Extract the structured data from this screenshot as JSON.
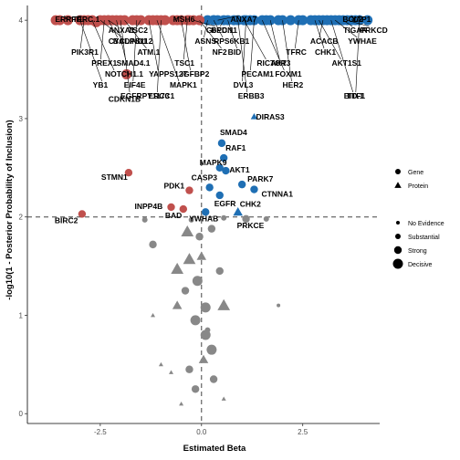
{
  "chart_data": {
    "type": "scatter",
    "title": "",
    "xlabel": "Estimated Beta",
    "ylabel": "-log10(1 - Posterior Probability of Inclusion)",
    "xlim": [
      -4.3,
      4.4
    ],
    "ylim": [
      -0.1,
      4.15
    ],
    "x_ticks": [
      -2.5,
      0.0,
      2.5
    ],
    "x_tick_labels": [
      "-2.5",
      "0.0",
      "2.5"
    ],
    "y_ticks": [
      0,
      1,
      2,
      3,
      4
    ],
    "y_tick_labels": [
      "0",
      "1",
      "2",
      "3",
      "4"
    ],
    "reference_lines": {
      "x": 0,
      "y": 2,
      "style": "dashed"
    },
    "legend": {
      "placement": "right",
      "shape_entries": [
        {
          "label": "Gene",
          "shape": "circle"
        },
        {
          "label": "Protein",
          "shape": "triangle"
        }
      ],
      "size_entries": [
        {
          "label": "No Evidence",
          "size": 1
        },
        {
          "label": "Substantial",
          "size": 2
        },
        {
          "label": "Strong",
          "size": 3
        },
        {
          "label": "Decisive",
          "size": 4
        }
      ]
    },
    "colors": {
      "negative": "#C0504D",
      "positive": "#1F6FB4",
      "insignificant": "#888888"
    },
    "labeled_points": [
      {
        "label": "SMAD4",
        "x": 0.5,
        "y": 2.75,
        "shape": "circle",
        "size": 3
      },
      {
        "label": "RAF1",
        "x": 0.55,
        "y": 2.6,
        "shape": "circle",
        "size": 3
      },
      {
        "label": "MAPK9",
        "x": 0.45,
        "y": 2.5,
        "shape": "circle",
        "size": 3
      },
      {
        "label": "AKT1",
        "x": 0.6,
        "y": 2.47,
        "shape": "circle",
        "size": 3
      },
      {
        "label": "CASP3",
        "x": 0.2,
        "y": 2.3,
        "shape": "circle",
        "size": 3
      },
      {
        "label": "PARK7",
        "x": 1.0,
        "y": 2.33,
        "shape": "circle",
        "size": 3
      },
      {
        "label": "EGFR",
        "x": 0.45,
        "y": 2.22,
        "shape": "circle",
        "size": 3
      },
      {
        "label": "CTNNA1",
        "x": 1.3,
        "y": 2.28,
        "shape": "circle",
        "size": 3
      },
      {
        "label": "CHK2",
        "x": 0.9,
        "y": 2.05,
        "shape": "triangle",
        "size": 3
      },
      {
        "label": "YWHAB",
        "x": 0.1,
        "y": 2.05,
        "shape": "circle",
        "size": 3
      },
      {
        "label": "PRKCE",
        "x": 1.1,
        "y": 1.98,
        "shape": "circle",
        "size": 3
      },
      {
        "label": "STMN1",
        "x": -1.8,
        "y": 2.45,
        "shape": "circle",
        "size": 3
      },
      {
        "label": "PDK1",
        "x": -0.3,
        "y": 2.27,
        "shape": "circle",
        "size": 3
      },
      {
        "label": "INPP4B",
        "x": -0.75,
        "y": 2.1,
        "shape": "circle",
        "size": 3
      },
      {
        "label": "BAD",
        "x": -0.45,
        "y": 2.08,
        "shape": "circle",
        "size": 3
      },
      {
        "label": "BIRC2",
        "x": -2.95,
        "y": 2.03,
        "shape": "circle",
        "size": 3
      },
      {
        "label": "DIRAS3",
        "x": 1.3,
        "y": 3.02,
        "shape": "triangle",
        "size": 2
      },
      {
        "label": "CDKN1B",
        "x": -1.85,
        "y": 3.45,
        "shape": "circle",
        "size": 4
      },
      {
        "label": "ERRFI1",
        "x": -3.3,
        "y": 4.0,
        "shape": "circle",
        "size": 4
      },
      {
        "label": "ANXA1",
        "x": -2.3,
        "y": 4.0,
        "shape": "circle",
        "size": 4
      },
      {
        "label": "BADPS112",
        "x": -2.5,
        "y": 4.0,
        "shape": "circle",
        "size": 4
      },
      {
        "label": "PIK3R1",
        "x": -2.9,
        "y": 4.0,
        "shape": "circle",
        "size": 4
      },
      {
        "label": "SMAD4.1",
        "x": -2.1,
        "y": 4.0,
        "shape": "circle",
        "size": 4
      },
      {
        "label": "NOTCH1.1",
        "x": -2.7,
        "y": 4.0,
        "shape": "circle",
        "size": 4
      },
      {
        "label": "EIF4E",
        "x": -1.6,
        "y": 4.0,
        "shape": "circle",
        "size": 4
      },
      {
        "label": "EGFRPY1173",
        "x": -2.0,
        "y": 4.0,
        "shape": "circle",
        "size": 4
      },
      {
        "label": "TFRC.1",
        "x": -3.5,
        "y": 4.0,
        "shape": "circle",
        "size": 4
      },
      {
        "label": "TSC2",
        "x": -1.5,
        "y": 4.0,
        "shape": "circle",
        "size": 4
      },
      {
        "label": "CYCLIND1",
        "x": -2.3,
        "y": 4.0,
        "shape": "circle",
        "size": 4
      },
      {
        "label": "ATM.1",
        "x": -1.9,
        "y": 4.0,
        "shape": "circle",
        "size": 4
      },
      {
        "label": "PREX1",
        "x": -2.4,
        "y": 4.0,
        "shape": "circle",
        "size": 4
      },
      {
        "label": "YAPPS127",
        "x": -1.3,
        "y": 4.0,
        "shape": "circle",
        "size": 4
      },
      {
        "label": "YB1",
        "x": -3.0,
        "y": 4.0,
        "shape": "circle",
        "size": 4
      },
      {
        "label": "ERCC1",
        "x": -1.0,
        "y": 4.0,
        "shape": "circle",
        "size": 4
      },
      {
        "label": "MSH6",
        "x": -0.7,
        "y": 4.0,
        "shape": "circle",
        "size": 4
      },
      {
        "label": "G6PD.1",
        "x": -0.2,
        "y": 4.0,
        "shape": "circle",
        "size": 4
      },
      {
        "label": "ASNS",
        "x": 0.15,
        "y": 4.0,
        "shape": "circle",
        "size": 4
      },
      {
        "label": "BID",
        "x": 0.65,
        "y": 4.0,
        "shape": "circle",
        "size": 4
      },
      {
        "label": "RICTOR",
        "x": 1.05,
        "y": 4.0,
        "shape": "circle",
        "size": 4
      },
      {
        "label": "PECAM1",
        "x": 1.3,
        "y": 4.0,
        "shape": "circle",
        "size": 4
      },
      {
        "label": "HER2",
        "x": 2.0,
        "y": 4.0,
        "shape": "circle",
        "size": 4
      },
      {
        "label": "BID.1",
        "x": 3.2,
        "y": 4.0,
        "shape": "circle",
        "size": 4
      },
      {
        "label": "BCL2",
        "x": 3.8,
        "y": 4.0,
        "shape": "circle",
        "size": 4
      },
      {
        "label": "TIGAR",
        "x": 3.5,
        "y": 4.0,
        "shape": "circle",
        "size": 4
      },
      {
        "label": "YWHAE",
        "x": 3.3,
        "y": 4.0,
        "shape": "circle",
        "size": 4
      },
      {
        "label": "TFRC",
        "x": 2.4,
        "y": 4.0,
        "shape": "circle",
        "size": 4
      },
      {
        "label": "AKT3",
        "x": 1.7,
        "y": 4.0,
        "shape": "circle",
        "size": 4
      },
      {
        "label": "FOXM1",
        "x": 1.5,
        "y": 4.0,
        "shape": "circle",
        "size": 4
      },
      {
        "label": "DVL3",
        "x": 1.1,
        "y": 4.0,
        "shape": "circle",
        "size": 4
      },
      {
        "label": "ERBB3",
        "x": 0.9,
        "y": 4.0,
        "shape": "circle",
        "size": 4
      },
      {
        "label": "ANXA7",
        "x": 0.4,
        "y": 4.0,
        "shape": "circle",
        "size": 4
      },
      {
        "label": "BECN1",
        "x": 0.55,
        "y": 4.0,
        "shape": "circle",
        "size": 4
      },
      {
        "label": "RPS6KB1",
        "x": 0.3,
        "y": 4.0,
        "shape": "circle",
        "size": 4
      },
      {
        "label": "NF2",
        "x": -0.05,
        "y": 4.0,
        "shape": "circle",
        "size": 4
      },
      {
        "label": "TSC1",
        "x": -0.35,
        "y": 4.0,
        "shape": "circle",
        "size": 4
      },
      {
        "label": "IGFBP2",
        "x": -0.5,
        "y": 4.0,
        "shape": "circle",
        "size": 4
      },
      {
        "label": "MAPK1",
        "x": -1.1,
        "y": 4.0,
        "shape": "circle",
        "size": 4
      },
      {
        "label": "TTF1",
        "x": 3.9,
        "y": 4.0,
        "shape": "circle",
        "size": 4
      },
      {
        "label": "YAP1",
        "x": 3.7,
        "y": 4.0,
        "shape": "circle",
        "size": 4
      },
      {
        "label": "PRKCD",
        "x": 3.6,
        "y": 4.0,
        "shape": "circle",
        "size": 4
      },
      {
        "label": "ACACB",
        "x": 3.0,
        "y": 4.0,
        "shape": "circle",
        "size": 4
      },
      {
        "label": "CHK1",
        "x": 2.8,
        "y": 4.0,
        "shape": "circle",
        "size": 4
      },
      {
        "label": "AKT1S1",
        "x": 2.9,
        "y": 4.0,
        "shape": "circle",
        "size": 4
      }
    ],
    "unlabeled_points": [
      {
        "x": -3.6,
        "y": 4.0,
        "shape": "circle",
        "size": 4,
        "group": "negative"
      },
      {
        "x": -2.8,
        "y": 4.0,
        "shape": "circle",
        "size": 4,
        "group": "negative"
      },
      {
        "x": -2.6,
        "y": 3.98,
        "shape": "circle",
        "size": 4,
        "group": "negative"
      },
      {
        "x": -2.2,
        "y": 4.0,
        "shape": "circle",
        "size": 4,
        "group": "negative"
      },
      {
        "x": -1.7,
        "y": 4.0,
        "shape": "circle",
        "size": 4,
        "group": "negative"
      },
      {
        "x": -1.2,
        "y": 4.0,
        "shape": "circle",
        "size": 4,
        "group": "negative"
      },
      {
        "x": -0.9,
        "y": 4.0,
        "shape": "circle",
        "size": 4,
        "group": "negative"
      },
      {
        "x": -0.6,
        "y": 4.0,
        "shape": "circle",
        "size": 4,
        "group": "negative"
      },
      {
        "x": -0.3,
        "y": 4.0,
        "shape": "circle",
        "size": 4,
        "group": "negative"
      },
      {
        "x": 0.3,
        "y": 4.0,
        "shape": "circle",
        "size": 4,
        "group": "positive"
      },
      {
        "x": 0.8,
        "y": 4.0,
        "shape": "circle",
        "size": 4,
        "group": "positive"
      },
      {
        "x": 1.2,
        "y": 4.0,
        "shape": "circle",
        "size": 4,
        "group": "positive"
      },
      {
        "x": 1.6,
        "y": 4.0,
        "shape": "circle",
        "size": 4,
        "group": "positive"
      },
      {
        "x": 1.9,
        "y": 4.0,
        "shape": "circle",
        "size": 4,
        "group": "positive"
      },
      {
        "x": 2.2,
        "y": 4.0,
        "shape": "circle",
        "size": 4,
        "group": "positive"
      },
      {
        "x": 2.5,
        "y": 4.0,
        "shape": "circle",
        "size": 4,
        "group": "positive"
      },
      {
        "x": 2.7,
        "y": 4.0,
        "shape": "circle",
        "size": 4,
        "group": "positive"
      },
      {
        "x": 3.1,
        "y": 4.0,
        "shape": "circle",
        "size": 4,
        "group": "positive"
      },
      {
        "x": 3.4,
        "y": 4.0,
        "shape": "circle",
        "size": 4,
        "group": "positive"
      },
      {
        "x": 4.1,
        "y": 4.0,
        "shape": "circle",
        "size": 4,
        "group": "positive"
      },
      {
        "x": -1.4,
        "y": 1.97,
        "shape": "circle",
        "size": 2,
        "group": "insignificant"
      },
      {
        "x": -0.25,
        "y": 1.97,
        "shape": "circle",
        "size": 2,
        "group": "insignificant"
      },
      {
        "x": 0.55,
        "y": 1.99,
        "shape": "circle",
        "size": 2,
        "group": "insignificant"
      },
      {
        "x": 1.6,
        "y": 1.98,
        "shape": "circle",
        "size": 2,
        "group": "insignificant"
      },
      {
        "x": -0.35,
        "y": 1.85,
        "shape": "triangle",
        "size": 4,
        "group": "insignificant"
      },
      {
        "x": 0.25,
        "y": 1.88,
        "shape": "circle",
        "size": 3,
        "group": "insignificant"
      },
      {
        "x": -1.2,
        "y": 1.72,
        "shape": "circle",
        "size": 3,
        "group": "insignificant"
      },
      {
        "x": -0.05,
        "y": 1.8,
        "shape": "circle",
        "size": 3,
        "group": "insignificant"
      },
      {
        "x": -0.3,
        "y": 1.57,
        "shape": "triangle",
        "size": 4,
        "group": "insignificant"
      },
      {
        "x": -0.6,
        "y": 1.47,
        "shape": "triangle",
        "size": 4,
        "group": "insignificant"
      },
      {
        "x": 0.0,
        "y": 1.6,
        "shape": "triangle",
        "size": 3,
        "group": "insignificant"
      },
      {
        "x": 0.45,
        "y": 1.45,
        "shape": "circle",
        "size": 3,
        "group": "insignificant"
      },
      {
        "x": -0.1,
        "y": 1.35,
        "shape": "circle",
        "size": 4,
        "group": "insignificant"
      },
      {
        "x": -0.4,
        "y": 1.25,
        "shape": "circle",
        "size": 3,
        "group": "insignificant"
      },
      {
        "x": -0.6,
        "y": 1.1,
        "shape": "triangle",
        "size": 3,
        "group": "insignificant"
      },
      {
        "x": 0.1,
        "y": 1.08,
        "shape": "circle",
        "size": 4,
        "group": "insignificant"
      },
      {
        "x": 0.55,
        "y": 1.1,
        "shape": "triangle",
        "size": 4,
        "group": "insignificant"
      },
      {
        "x": -0.15,
        "y": 0.95,
        "shape": "circle",
        "size": 4,
        "group": "insignificant"
      },
      {
        "x": 0.1,
        "y": 0.8,
        "shape": "circle",
        "size": 4,
        "group": "insignificant"
      },
      {
        "x": 0.25,
        "y": 0.65,
        "shape": "circle",
        "size": 4,
        "group": "insignificant"
      },
      {
        "x": 0.05,
        "y": 0.55,
        "shape": "triangle",
        "size": 3,
        "group": "insignificant"
      },
      {
        "x": -0.3,
        "y": 0.45,
        "shape": "circle",
        "size": 3,
        "group": "insignificant"
      },
      {
        "x": 0.3,
        "y": 0.35,
        "shape": "circle",
        "size": 3,
        "group": "insignificant"
      },
      {
        "x": -0.15,
        "y": 0.25,
        "shape": "circle",
        "size": 3,
        "group": "insignificant"
      },
      {
        "x": -0.75,
        "y": 0.42,
        "shape": "triangle",
        "size": 1,
        "group": "insignificant"
      },
      {
        "x": -1.0,
        "y": 0.5,
        "shape": "triangle",
        "size": 1,
        "group": "insignificant"
      },
      {
        "x": 0.55,
        "y": 0.15,
        "shape": "triangle",
        "size": 1,
        "group": "insignificant"
      },
      {
        "x": -0.5,
        "y": 0.1,
        "shape": "triangle",
        "size": 1,
        "group": "insignificant"
      },
      {
        "x": 1.9,
        "y": 1.1,
        "shape": "circle",
        "size": 1,
        "group": "insignificant"
      },
      {
        "x": -1.2,
        "y": 1.0,
        "shape": "triangle",
        "size": 1,
        "group": "insignificant"
      },
      {
        "x": 0.15,
        "y": 0.85,
        "shape": "circle",
        "size": 2,
        "group": "insignificant"
      }
    ]
  }
}
